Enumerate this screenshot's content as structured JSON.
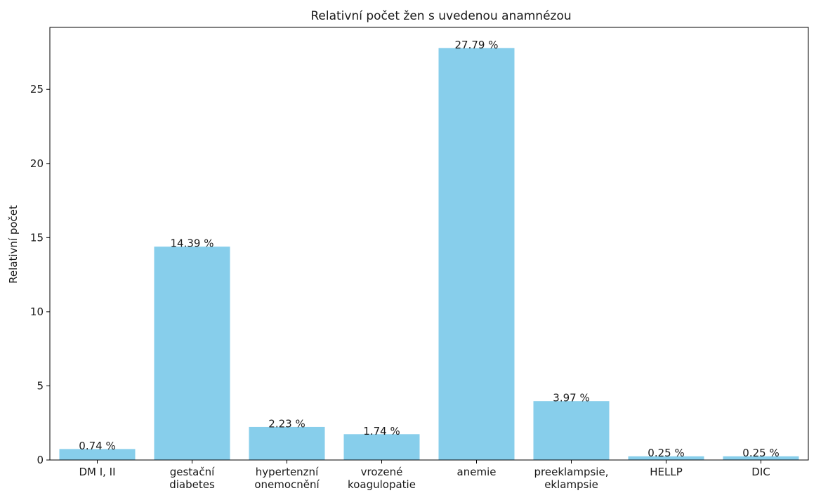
{
  "chart_data": {
    "type": "bar",
    "title": "Relativní počet žen s uvedenou anamnézou",
    "xlabel": "",
    "ylabel": "Relativní počet",
    "categories": [
      [
        "DM I, II"
      ],
      [
        "gestační",
        "diabetes"
      ],
      [
        "hypertenzní",
        "onemocnění"
      ],
      [
        "vrozené",
        "koagulopatie"
      ],
      [
        "anemie"
      ],
      [
        "preeklampsie,",
        "eklampsie"
      ],
      [
        "HELLP"
      ],
      [
        "DIC"
      ]
    ],
    "values": [
      0.74,
      14.39,
      2.23,
      1.74,
      27.79,
      3.97,
      0.25,
      0.25
    ],
    "value_labels": [
      "0.74 %",
      "14.39 %",
      "2.23 %",
      "1.74 %",
      "27.79 %",
      "3.97 %",
      "0.25 %",
      "0.25 %"
    ],
    "ylim": [
      0,
      29.18
    ],
    "yticks": [
      0,
      5,
      10,
      15,
      20,
      25
    ],
    "bar_color": "#87ceeb",
    "grid": false,
    "legend": "none"
  }
}
